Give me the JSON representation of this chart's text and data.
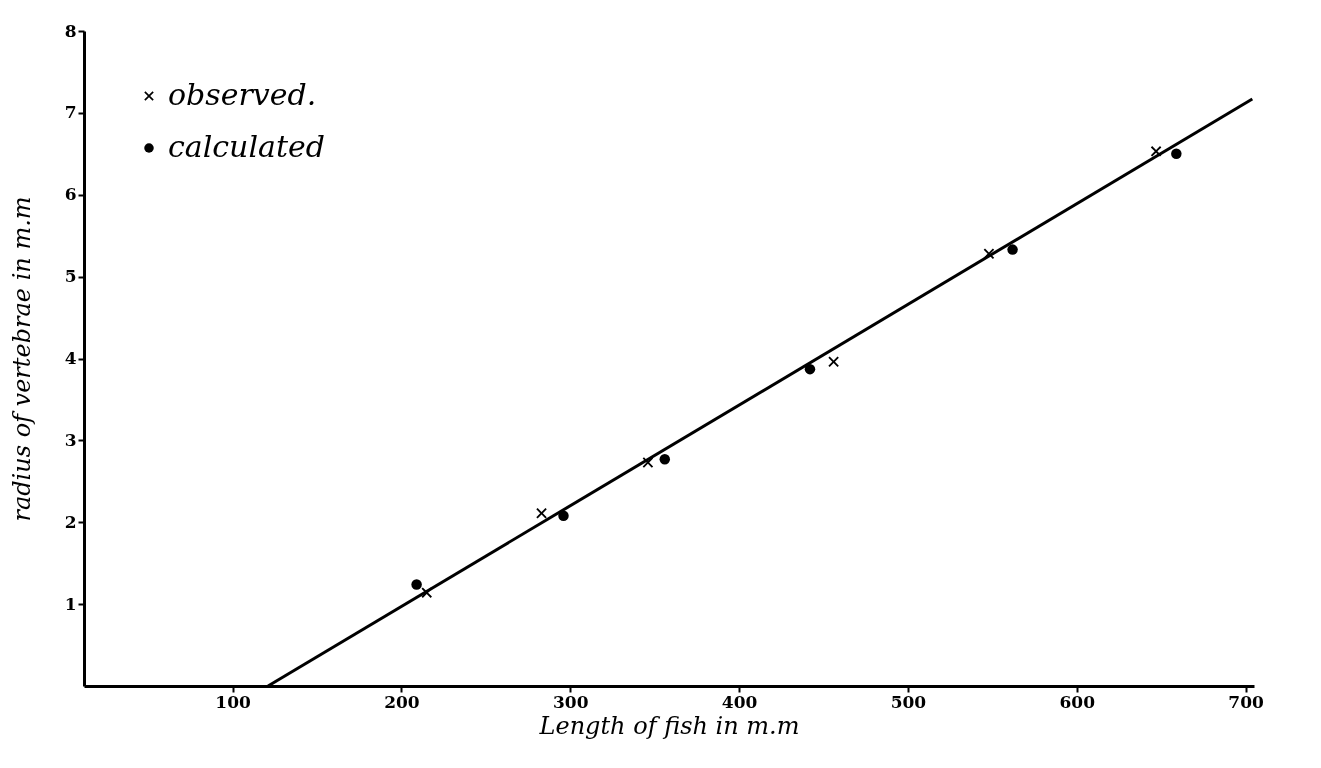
{
  "chart_data": {
    "type": "scatter",
    "xlabel": "Length of fish in m.m",
    "ylabel": "radius of vertebrae in m.m",
    "xlim": [
      12,
      705
    ],
    "ylim": [
      0,
      8
    ],
    "xticks": [
      100,
      200,
      300,
      400,
      500,
      600,
      700
    ],
    "yticks": [
      1,
      2,
      3,
      4,
      5,
      6,
      7,
      8
    ],
    "legend": "top left",
    "series": [
      {
        "name": "observed.",
        "marker": "cross",
        "color": "#000000",
        "x": [
          215,
          283,
          346,
          456,
          548,
          647
        ],
        "values": [
          1.14,
          2.11,
          2.73,
          3.96,
          5.28,
          6.53
        ]
      },
      {
        "name": "calculated",
        "marker": "circle",
        "color": "#000000",
        "x": [
          209,
          296,
          356,
          442,
          562,
          659
        ],
        "values": [
          1.24,
          2.08,
          2.77,
          3.87,
          5.33,
          6.5
        ]
      },
      {
        "type": "line",
        "marker": "none",
        "line_style": "solid",
        "color": "#000000",
        "x": [
          121,
          704
        ],
        "values": [
          0,
          7.17
        ]
      }
    ]
  }
}
